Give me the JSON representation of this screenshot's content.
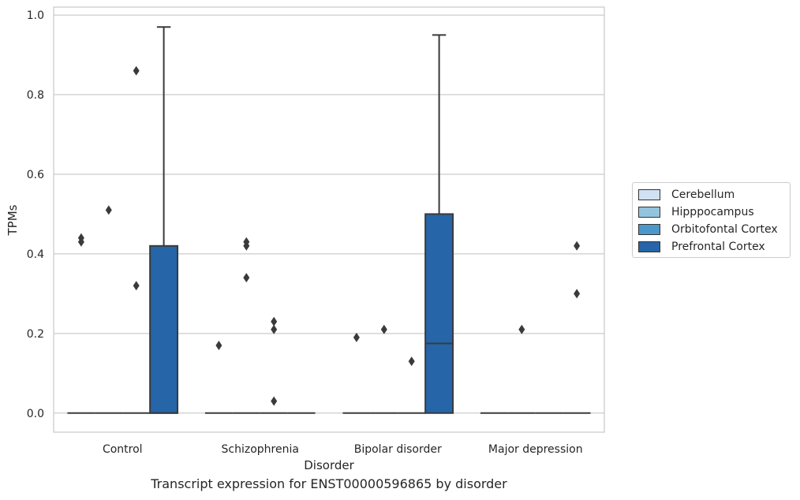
{
  "caption": "Transcript expression for ENST00000596865 by disorder",
  "chart_data": {
    "type": "box",
    "title": "",
    "xlabel": "Disorder",
    "ylabel": "TPMs",
    "ylim": [
      -0.048,
      1.02
    ],
    "yticks": [
      0.0,
      0.2,
      0.4,
      0.6,
      0.8,
      1.0
    ],
    "ytick_labels": [
      "0.0",
      "0.2",
      "0.4",
      "0.6",
      "0.8",
      "1.0"
    ],
    "grid": "horizontal",
    "legend_position": "right",
    "categories": [
      "Control",
      "Schizophrenia",
      "Bipolar disorder",
      "Major depression"
    ],
    "series": [
      {
        "name": "Cerebellum",
        "color": "#cfe1f2",
        "boxes": [
          {
            "q1": 0,
            "median": 0,
            "q3": 0,
            "whisker_low": 0,
            "whisker_high": 0,
            "outliers": [
              0.43,
              0.44
            ]
          },
          {
            "q1": 0,
            "median": 0,
            "q3": 0,
            "whisker_low": 0,
            "whisker_high": 0,
            "outliers": [
              0.17
            ]
          },
          {
            "q1": 0,
            "median": 0,
            "q3": 0,
            "whisker_low": 0,
            "whisker_high": 0,
            "outliers": [
              0.19
            ]
          },
          {
            "q1": 0,
            "median": 0,
            "q3": 0,
            "whisker_low": 0,
            "whisker_high": 0,
            "outliers": []
          }
        ]
      },
      {
        "name": "Hipppocampus",
        "color": "#93c4de",
        "boxes": [
          {
            "q1": 0,
            "median": 0,
            "q3": 0,
            "whisker_low": 0,
            "whisker_high": 0,
            "outliers": [
              0.51
            ]
          },
          {
            "q1": 0,
            "median": 0,
            "q3": 0,
            "whisker_low": 0,
            "whisker_high": 0,
            "outliers": [
              0.34,
              0.42,
              0.43
            ]
          },
          {
            "q1": 0,
            "median": 0,
            "q3": 0,
            "whisker_low": 0,
            "whisker_high": 0,
            "outliers": [
              0.21
            ]
          },
          {
            "q1": 0,
            "median": 0,
            "q3": 0,
            "whisker_low": 0,
            "whisker_high": 0,
            "outliers": [
              0.21
            ]
          }
        ]
      },
      {
        "name": "Orbitofontal Cortex",
        "color": "#4a98c9",
        "boxes": [
          {
            "q1": 0,
            "median": 0,
            "q3": 0,
            "whisker_low": 0,
            "whisker_high": 0,
            "outliers": [
              0.32,
              0.86
            ]
          },
          {
            "q1": 0,
            "median": 0,
            "q3": 0,
            "whisker_low": 0,
            "whisker_high": 0,
            "outliers": [
              0.03,
              0.21,
              0.23
            ]
          },
          {
            "q1": 0,
            "median": 0,
            "q3": 0,
            "whisker_low": 0,
            "whisker_high": 0,
            "outliers": [
              0.13
            ]
          },
          {
            "q1": 0,
            "median": 0,
            "q3": 0,
            "whisker_low": 0,
            "whisker_high": 0,
            "outliers": []
          }
        ]
      },
      {
        "name": "Prefrontal Cortex",
        "color": "#2565a8",
        "boxes": [
          {
            "q1": 0,
            "median": 0,
            "q3": 0.42,
            "whisker_low": 0,
            "whisker_high": 0.97,
            "outliers": []
          },
          {
            "q1": 0,
            "median": 0,
            "q3": 0,
            "whisker_low": 0,
            "whisker_high": 0,
            "outliers": []
          },
          {
            "q1": 0,
            "median": 0.175,
            "q3": 0.5,
            "whisker_low": 0,
            "whisker_high": 0.95,
            "outliers": []
          },
          {
            "q1": 0,
            "median": 0,
            "q3": 0,
            "whisker_low": 0,
            "whisker_high": 0,
            "outliers": [
              0.3,
              0.42
            ]
          }
        ]
      }
    ]
  }
}
